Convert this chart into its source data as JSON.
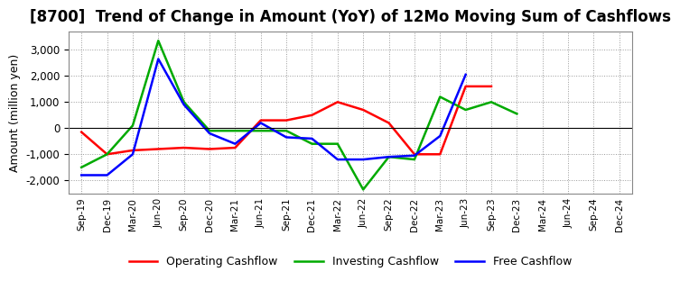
{
  "title": "[8700]  Trend of Change in Amount (YoY) of 12Mo Moving Sum of Cashflows",
  "ylabel": "Amount (million yen)",
  "x_labels": [
    "Sep-19",
    "Dec-19",
    "Mar-20",
    "Jun-20",
    "Sep-20",
    "Dec-20",
    "Mar-21",
    "Jun-21",
    "Sep-21",
    "Dec-21",
    "Mar-22",
    "Jun-22",
    "Sep-22",
    "Dec-22",
    "Mar-23",
    "Jun-23",
    "Sep-23",
    "Dec-23",
    "Mar-24",
    "Jun-24",
    "Sep-24",
    "Dec-24"
  ],
  "operating_cashflow": [
    -150,
    -1000,
    -850,
    -800,
    -750,
    -800,
    -750,
    300,
    300,
    500,
    1000,
    700,
    200,
    -1000,
    -1000,
    1600,
    1600,
    null,
    null,
    null,
    null,
    null
  ],
  "investing_cashflow": [
    -1500,
    -1000,
    100,
    3350,
    1000,
    -100,
    -100,
    -100,
    -100,
    -600,
    -600,
    -2350,
    -1100,
    -1200,
    1200,
    700,
    1000,
    550,
    null,
    null,
    null,
    null
  ],
  "free_cashflow": [
    -1800,
    -1800,
    -1000,
    2650,
    900,
    -200,
    -600,
    200,
    -350,
    -400,
    -1200,
    -1200,
    -1100,
    -1050,
    -300,
    2050,
    null,
    null,
    null,
    null,
    null,
    null
  ],
  "ylim": [
    -2500,
    3700
  ],
  "yticks": [
    -2000,
    -1000,
    0,
    1000,
    2000,
    3000
  ],
  "operating_color": "#ff0000",
  "investing_color": "#00aa00",
  "free_color": "#0000ff",
  "bg_color": "#ffffff",
  "plot_bg_color": "#ffffff",
  "grid_color": "#999999",
  "title_fontsize": 12,
  "legend_labels": [
    "Operating Cashflow",
    "Investing Cashflow",
    "Free Cashflow"
  ]
}
